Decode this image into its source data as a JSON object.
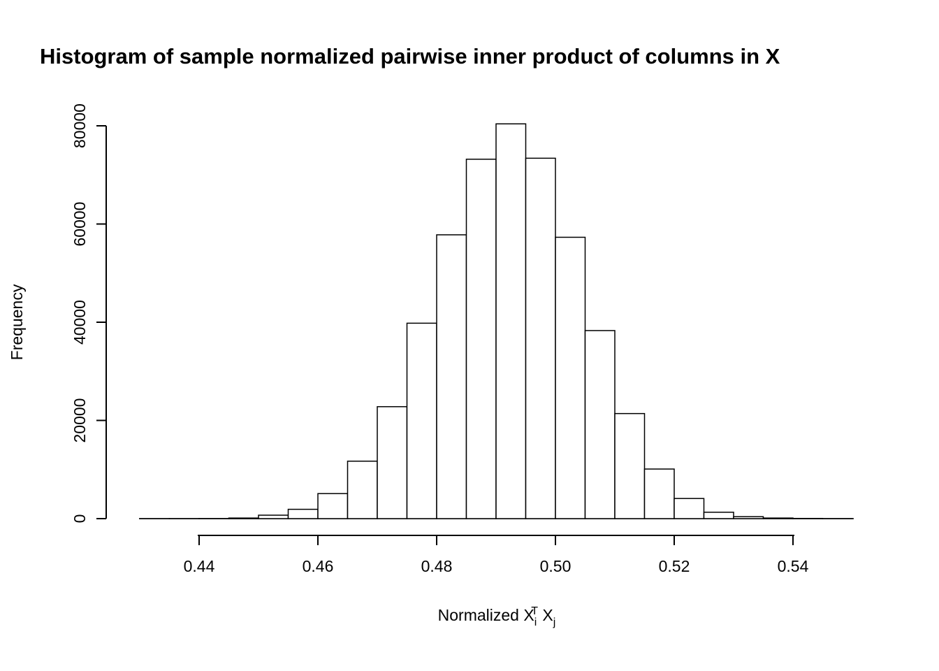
{
  "title": "Histogram of sample normalized pairwise inner product of columns in X",
  "chart_data": {
    "type": "bar",
    "subtype": "histogram",
    "title": "Histogram of sample normalized pairwise inner product of columns in X",
    "ylabel": "Frequency",
    "xlabel_plain": "Normalized Xi^T Xj",
    "xlabel_segments": [
      {
        "text": "Normalized X",
        "style": "normal"
      },
      {
        "text": "i",
        "style": "subscript"
      },
      {
        "text": "T",
        "style": "superscript-stacked"
      },
      {
        "text": " X",
        "style": "normal"
      },
      {
        "text": "j",
        "style": "subscript"
      }
    ],
    "xlim": [
      0.43,
      0.55
    ],
    "ylim": [
      0,
      80400
    ],
    "bin_start": 0.43,
    "bin_width": 0.005,
    "counts": [
      2,
      5,
      20,
      120,
      700,
      1900,
      5100,
      11700,
      22800,
      39800,
      57800,
      73200,
      80400,
      73400,
      57300,
      38300,
      21400,
      10100,
      4100,
      1300,
      400,
      120,
      40,
      10
    ],
    "x_ticks": [
      {
        "value": 0.44,
        "label": "0.44"
      },
      {
        "value": 0.46,
        "label": "0.46"
      },
      {
        "value": 0.48,
        "label": "0.48"
      },
      {
        "value": 0.5,
        "label": "0.50"
      },
      {
        "value": 0.52,
        "label": "0.52"
      },
      {
        "value": 0.54,
        "label": "0.54"
      }
    ],
    "y_ticks": [
      {
        "value": 0,
        "label": "0"
      },
      {
        "value": 20000,
        "label": "20000"
      },
      {
        "value": 40000,
        "label": "40000"
      },
      {
        "value": 60000,
        "label": "60000"
      },
      {
        "value": 80000,
        "label": "80000"
      }
    ],
    "bar_fill": "#ffffff",
    "bar_stroke": "#000000",
    "axis_color": "#000000",
    "text_color": "#000000",
    "grid": false,
    "legend": null
  }
}
